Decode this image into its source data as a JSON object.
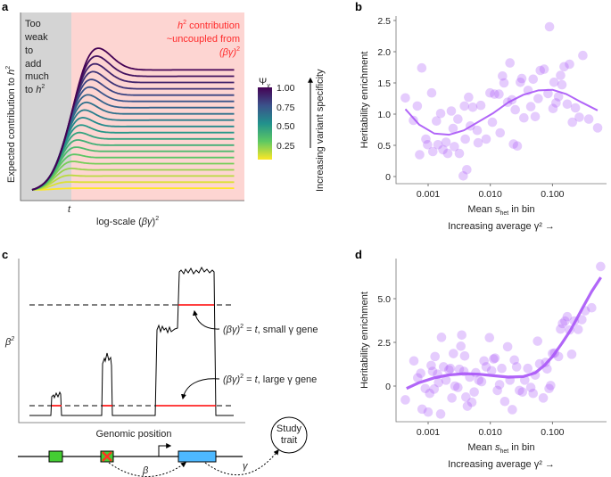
{
  "panels": {
    "a": {
      "label": "a",
      "ylabel": "Expected contribution to ",
      "ylabel_var": "h",
      "ylabel_sup": "2",
      "xlabel": "log-scale (",
      "xlabel_var": "βγ",
      "xlabel_end": ")",
      "xlabel_sup": "2",
      "t_tick": "t",
      "gray_note": [
        "Too",
        "weak",
        "to",
        "add",
        "much",
        "to "
      ],
      "gray_note_var": "h",
      "gray_note_sup": "2",
      "pink_note_line1_var": "h",
      "pink_note_line1_sup": "2",
      "pink_note_line1": " contribution",
      "pink_note_line2": "~uncoupled from",
      "pink_note_line3": "(βγ)",
      "pink_note_line3_sup": "2",
      "colorbar_title": "Ψ",
      "colorbar_title_sub": "v",
      "colorbar_ticks": [
        "1.00",
        "0.75",
        "0.50",
        "0.25"
      ],
      "side_label": "Increasing variant specificity",
      "colors": {
        "gray_region": "#d4d4d4",
        "pink_region": "#fdd5d2",
        "note_red": "#ff2a2a"
      }
    },
    "b": {
      "label": "b"
    },
    "c": {
      "label": "c",
      "ylabel": "β",
      "ylabel_sup": "2",
      "xlabel": "Genomic position",
      "annot_small_pre": "(βγ)",
      "annot_small_sup": "2",
      "annot_small_eq": " = ",
      "annot_small_t": "t",
      "annot_small_post": ", small γ gene",
      "annot_large_pre": "(βγ)",
      "annot_large_sup": "2",
      "annot_large_eq": " = ",
      "annot_large_t": "t",
      "annot_large_post": ", large γ gene",
      "beta_label": "β",
      "gamma_label": "γ",
      "trait_line1": "Study",
      "trait_line2": "trait",
      "colors": {
        "threshold": "#ff0000",
        "enhancer": "#44cc33",
        "gene": "#4db8ff",
        "knockout": "#ff3322"
      }
    },
    "d": {
      "label": "d"
    }
  },
  "chart_data": [
    {
      "panel": "a",
      "type": "line",
      "xlabel": "log-scale (βγ)²",
      "ylabel": "Expected contribution to h²",
      "legend": "colorbar, right",
      "colorbar": {
        "title": "Ψv",
        "range": [
          0,
          1
        ],
        "ticks": [
          0.25,
          0.5,
          0.75,
          1.0
        ],
        "colormap": [
          "#fde725",
          "#5ec962",
          "#21918c",
          "#3b528b",
          "#440154"
        ]
      },
      "series_psi": [
        0.0,
        0.0526,
        0.105,
        0.158,
        0.211,
        0.263,
        0.316,
        0.368,
        0.421,
        0.474,
        0.526,
        0.579,
        0.632,
        0.684,
        0.737,
        0.789,
        0.842,
        0.895,
        0.947,
        1.0
      ]
    },
    {
      "panel": "b",
      "type": "scatter",
      "ylabel": "Heritability enrichment",
      "xlabel": "Mean s_het in bin",
      "xlabel2": "Increasing average γ² →",
      "xscale": "log",
      "xticks": [
        "0.001",
        "0.010",
        "0.100"
      ],
      "yticks": [
        "0",
        "0.5",
        "1.0",
        "1.5",
        "2.0",
        "2.5"
      ],
      "ylim": [
        0,
        2.5
      ],
      "color": "#a855f7",
      "points": [
        [
          0.00043,
          1.26
        ],
        [
          0.00058,
          0.9
        ],
        [
          0.00067,
          1.13
        ],
        [
          0.00079,
          1.74
        ],
        [
          0.00092,
          0.6
        ],
        [
          0.00098,
          0.51
        ],
        [
          0.00073,
          0.35
        ],
        [
          0.00114,
          1.34
        ],
        [
          0.00119,
          0.4
        ],
        [
          0.00136,
          0.89
        ],
        [
          0.00144,
          0.51
        ],
        [
          0.00159,
          1.01
        ],
        [
          0.00173,
          0.43
        ],
        [
          0.00194,
          0.55
        ],
        [
          0.00207,
          0.37
        ],
        [
          0.00236,
          1.05
        ],
        [
          0.00252,
          0.77
        ],
        [
          0.00264,
          0.48
        ],
        [
          0.00301,
          0.92
        ],
        [
          0.00318,
          0.37
        ],
        [
          0.00367,
          0.01
        ],
        [
          0.00419,
          0.11
        ],
        [
          0.00396,
          0.6
        ],
        [
          0.00384,
          1.13
        ],
        [
          0.00448,
          1.27
        ],
        [
          0.00478,
          0.81
        ],
        [
          0.00522,
          1.11
        ],
        [
          0.00616,
          0.74
        ],
        [
          0.00637,
          0.54
        ],
        [
          0.00703,
          1.14
        ],
        [
          0.00857,
          0.6
        ],
        [
          0.00989,
          1.34
        ],
        [
          0.0108,
          0.87
        ],
        [
          0.0117,
          1.32
        ],
        [
          0.0138,
          1.32
        ],
        [
          0.0144,
          0.7
        ],
        [
          0.0157,
          1.61
        ],
        [
          0.0166,
          1.5
        ],
        [
          0.019,
          1.19
        ],
        [
          0.0207,
          1.82
        ],
        [
          0.0223,
          1.23
        ],
        [
          0.0236,
          0.52
        ],
        [
          0.0252,
          1.07
        ],
        [
          0.0272,
          0.49
        ],
        [
          0.0304,
          1.51
        ],
        [
          0.0321,
          1.57
        ],
        [
          0.0347,
          0.94
        ],
        [
          0.0405,
          1.38
        ],
        [
          0.0448,
          1.12
        ],
        [
          0.0489,
          1.56
        ],
        [
          0.0528,
          0.96
        ],
        [
          0.0589,
          1.25
        ],
        [
          0.0637,
          1.7
        ],
        [
          0.0734,
          1.72
        ],
        [
          0.0848,
          1.33
        ],
        [
          0.0896,
          2.4
        ],
        [
          0.102,
          1.09
        ],
        [
          0.106,
          1.51
        ],
        [
          0.114,
          1.18
        ],
        [
          0.125,
          1.28
        ],
        [
          0.135,
          1.62
        ],
        [
          0.142,
          1.47
        ],
        [
          0.154,
          1.76
        ],
        [
          0.173,
          1.16
        ],
        [
          0.188,
          1.8
        ],
        [
          0.209,
          0.87
        ],
        [
          0.234,
          1.1
        ],
        [
          0.27,
          0.95
        ],
        [
          0.308,
          1.94
        ],
        [
          0.384,
          0.92
        ],
        [
          0.533,
          0.78
        ]
      ],
      "fit": [
        [
          0.00043,
          1.08
        ],
        [
          0.00072,
          0.83
        ],
        [
          0.00125,
          0.69
        ],
        [
          0.00218,
          0.67
        ],
        [
          0.00376,
          0.74
        ],
        [
          0.00652,
          0.88
        ],
        [
          0.0113,
          1.02
        ],
        [
          0.0196,
          1.19
        ],
        [
          0.034,
          1.31
        ],
        [
          0.059,
          1.38
        ],
        [
          0.1,
          1.39
        ],
        [
          0.168,
          1.32
        ],
        [
          0.293,
          1.19
        ],
        [
          0.53,
          1.06
        ]
      ]
    },
    {
      "panel": "d",
      "type": "scatter",
      "ylabel": "Heritability enrichment",
      "xlabel": "Mean s_het in bin",
      "xlabel2": "Increasing average γ² →",
      "xscale": "log",
      "xticks": [
        "0.001",
        "0.010",
        "0.100"
      ],
      "yticks": [
        "0",
        "2.5",
        "5.0"
      ],
      "ylim": [
        -2,
        7
      ],
      "color": "#a855f7",
      "points": [
        [
          0.00043,
          -0.79
        ],
        [
          0.00059,
          1.44
        ],
        [
          0.00068,
          0.47
        ],
        [
          0.00076,
          0.73
        ],
        [
          0.0008,
          -1.32
        ],
        [
          0.0009,
          -0.14
        ],
        [
          0.001,
          -1.49
        ],
        [
          0.00106,
          -0.42
        ],
        [
          0.00112,
          1.18
        ],
        [
          0.00118,
          0.84
        ],
        [
          0.00129,
          1.69
        ],
        [
          0.00125,
          -0.17
        ],
        [
          0.00142,
          0.68
        ],
        [
          0.00147,
          0.2
        ],
        [
          0.00159,
          -1.6
        ],
        [
          0.00164,
          2.79
        ],
        [
          0.00177,
          1.1
        ],
        [
          0.00194,
          0.34
        ],
        [
          0.00216,
          0.93
        ],
        [
          0.00228,
          1.01
        ],
        [
          0.00241,
          -0.68
        ],
        [
          0.00255,
          1.86
        ],
        [
          0.0027,
          0.0
        ],
        [
          0.00301,
          -0.08
        ],
        [
          0.00318,
          0.96
        ],
        [
          0.00336,
          2.28
        ],
        [
          0.00347,
          2.92
        ],
        [
          0.00376,
          0.84
        ],
        [
          0.00387,
          1.72
        ],
        [
          0.00405,
          -0.63
        ],
        [
          0.00428,
          -1.15
        ],
        [
          0.00467,
          0.51
        ],
        [
          0.00505,
          -0.93
        ],
        [
          0.00551,
          -0.34
        ],
        [
          0.00584,
          0.76
        ],
        [
          0.00652,
          0.34
        ],
        [
          0.00724,
          0.25
        ],
        [
          0.00793,
          1.44
        ],
        [
          0.00857,
          1.1
        ],
        [
          0.00969,
          2.77
        ],
        [
          0.0105,
          0.88
        ],
        [
          0.0113,
          1.55
        ],
        [
          0.0119,
          1.6
        ],
        [
          0.013,
          -0.25
        ],
        [
          0.0141,
          0.08
        ],
        [
          0.0153,
          1.01
        ],
        [
          0.0171,
          -0.88
        ],
        [
          0.019,
          2.25
        ],
        [
          0.0207,
          0.34
        ],
        [
          0.0226,
          -1.35
        ],
        [
          0.0244,
          1.49
        ],
        [
          0.0265,
          1.1
        ],
        [
          0.0294,
          -0.25
        ],
        [
          0.0329,
          -0.34
        ],
        [
          0.0358,
          0.34
        ],
        [
          0.0401,
          1.01
        ],
        [
          0.0448,
          -0.08
        ],
        [
          0.0489,
          -0.42
        ],
        [
          0.0528,
          0.63
        ],
        [
          0.0576,
          2.57
        ],
        [
          0.0622,
          1.27
        ],
        [
          0.0711,
          -0.68
        ],
        [
          0.0778,
          1.35
        ],
        [
          0.0818,
          0.98
        ],
        [
          0.0882,
          -0.14
        ],
        [
          0.0934,
          0.03
        ],
        [
          0.1,
          1.86
        ],
        [
          0.108,
          1.89
        ],
        [
          0.125,
          1.69
        ],
        [
          0.135,
          3.26
        ],
        [
          0.145,
          3.58
        ],
        [
          0.159,
          3.72
        ],
        [
          0.173,
          3.97
        ],
        [
          0.188,
          3.21
        ],
        [
          0.204,
          1.82
        ],
        [
          0.225,
          3.72
        ],
        [
          0.259,
          3.24
        ],
        [
          0.297,
          3.8
        ],
        [
          0.336,
          4.31
        ],
        [
          0.427,
          4.48
        ],
        [
          0.595,
          6.84
        ]
      ],
      "fit": [
        [
          0.00045,
          -0.14
        ],
        [
          0.00072,
          0.2
        ],
        [
          0.00125,
          0.47
        ],
        [
          0.00216,
          0.64
        ],
        [
          0.0038,
          0.71
        ],
        [
          0.0065,
          0.68
        ],
        [
          0.0113,
          0.59
        ],
        [
          0.0196,
          0.51
        ],
        [
          0.034,
          0.54
        ],
        [
          0.053,
          0.76
        ],
        [
          0.074,
          1.18
        ],
        [
          0.1,
          1.69
        ],
        [
          0.142,
          2.45
        ],
        [
          0.196,
          3.21
        ],
        [
          0.305,
          4.48
        ],
        [
          0.427,
          5.41
        ],
        [
          0.6,
          6.22
        ]
      ]
    }
  ]
}
